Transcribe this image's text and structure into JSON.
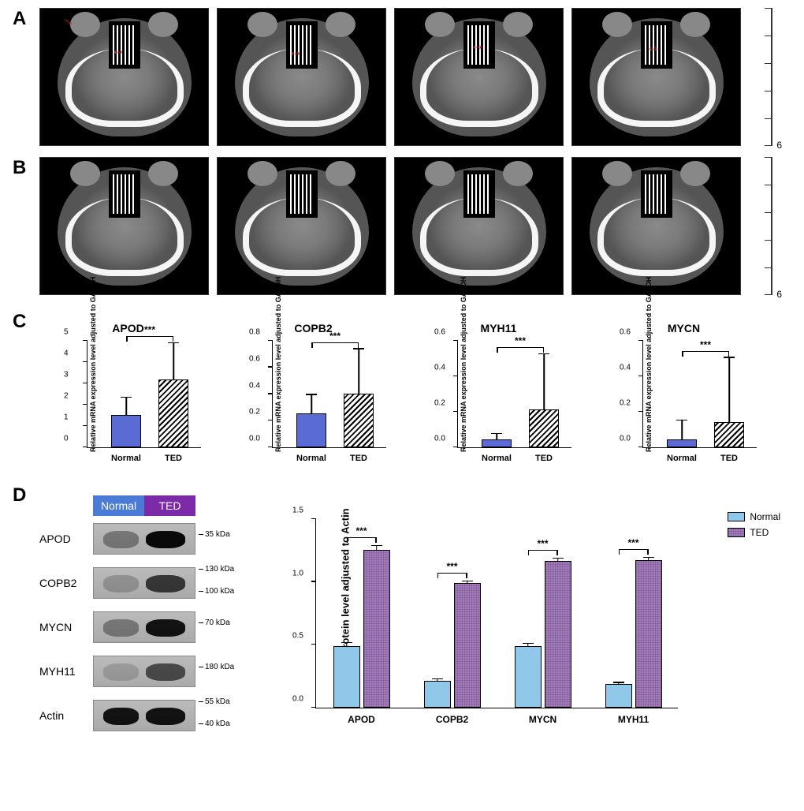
{
  "panel_labels": {
    "a": "A",
    "b": "B",
    "c": "C",
    "d": "D"
  },
  "ct_scale": {
    "label": "6",
    "ticks": 6
  },
  "panel_c": {
    "y_axis_label": "Relative mRNA expression level adjusted to GAPDH",
    "x_categories": [
      "Normal",
      "TED"
    ],
    "significance": "***",
    "charts": [
      {
        "gene": "APOD",
        "normal": 1.5,
        "normal_err": 0.8,
        "ted": 3.15,
        "ted_err": 1.7,
        "ymax": 5,
        "ytick": 1
      },
      {
        "gene": "COPB2",
        "normal": 0.255,
        "normal_err": 0.135,
        "ted": 0.4,
        "ted_err": 0.33,
        "ymax": 0.8,
        "ytick": 0.2
      },
      {
        "gene": "MYH11",
        "normal": 0.045,
        "normal_err": 0.03,
        "ted": 0.21,
        "ted_err": 0.31,
        "ymax": 0.6,
        "ytick": 0.2
      },
      {
        "gene": "MYCN",
        "normal": 0.045,
        "normal_err": 0.105,
        "ted": 0.14,
        "ted_err": 0.36,
        "ymax": 0.6,
        "ytick": 0.2
      }
    ],
    "bar_colors": {
      "normal": "#5b6bd6",
      "ted_pattern": "diagonal-hatch"
    }
  },
  "panel_d": {
    "header": {
      "normal": "Normal",
      "ted": "TED",
      "normal_color": "#4b7bd6",
      "ted_color": "#7b2aa8"
    },
    "blots": [
      {
        "protein": "APOD",
        "mw": "35 kDa",
        "mw2": null,
        "normal_intensity": 0.35,
        "ted_intensity": 0.95
      },
      {
        "protein": "COPB2",
        "mw": "130 kDa",
        "mw2": "100 kDa",
        "normal_intensity": 0.2,
        "ted_intensity": 0.7
      },
      {
        "protein": "MYCN",
        "mw": "70 kDa",
        "mw2": null,
        "normal_intensity": 0.35,
        "ted_intensity": 0.9
      },
      {
        "protein": "MYH11",
        "mw": "180 kDa",
        "mw2": null,
        "normal_intensity": 0.15,
        "ted_intensity": 0.6
      },
      {
        "protein": "Actin",
        "mw": "55 kDa",
        "mw2": "40 kDa",
        "normal_intensity": 0.9,
        "ted_intensity": 0.9
      }
    ],
    "chart": {
      "y_axis_label": "Relative protein level adjusted to Actin",
      "ymax": 1.5,
      "ytick": 0.5,
      "significance": "***",
      "legend": {
        "normal": "Normal",
        "ted": "TED"
      },
      "colors": {
        "normal": "#8fc8e8",
        "ted": "#a77cc0"
      },
      "groups": [
        {
          "protein": "APOD",
          "normal": 0.49,
          "normal_err": 0.02,
          "ted": 1.25,
          "ted_err": 0.03
        },
        {
          "protein": "COPB2",
          "normal": 0.215,
          "normal_err": 0.01,
          "ted": 0.985,
          "ted_err": 0.015
        },
        {
          "protein": "MYCN",
          "normal": 0.49,
          "normal_err": 0.015,
          "ted": 1.16,
          "ted_err": 0.02
        },
        {
          "protein": "MYH11",
          "normal": 0.185,
          "normal_err": 0.01,
          "ted": 1.17,
          "ted_err": 0.015
        }
      ]
    }
  }
}
